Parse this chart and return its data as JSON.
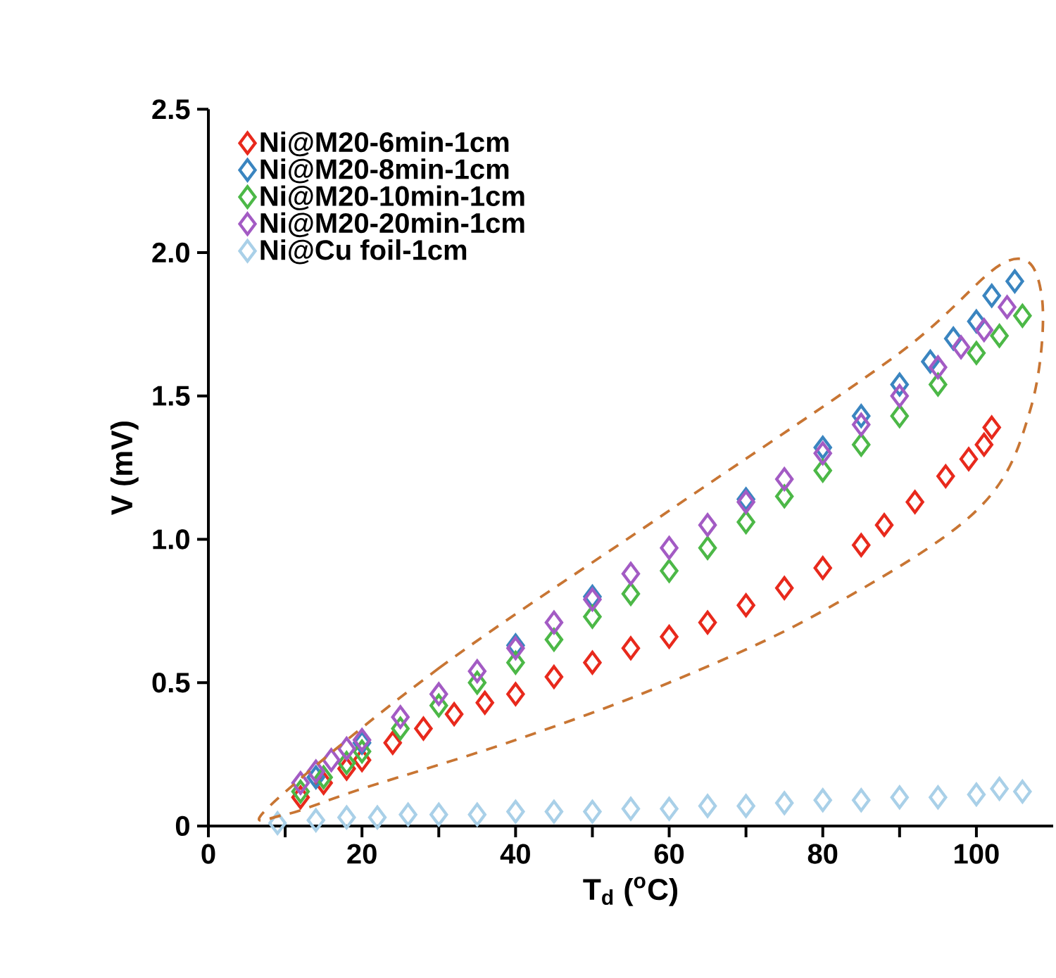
{
  "chart_data": {
    "type": "scatter",
    "xlabel": "T$_{d}$ ($^{o}$C)",
    "ylabel": "V (mV)",
    "xlim": [
      0,
      110
    ],
    "ylim": [
      0,
      2.5
    ],
    "xticks": [
      0,
      {
        "value": 10,
        "label": null
      },
      20,
      {
        "value": 30,
        "label": null
      },
      40,
      {
        "value": 50,
        "label": null
      },
      60,
      {
        "value": 70,
        "label": null
      },
      80,
      {
        "value": 90,
        "label": null
      },
      100
    ],
    "yticks": [
      0,
      0.5,
      {
        "value": 1,
        "label": "1.0"
      },
      1.5,
      {
        "value": 2,
        "label": "2.0"
      },
      2.5
    ],
    "marker": "diamond",
    "legend": "top left",
    "grid": false,
    "series": [
      {
        "name": "Ni@M20-6min-1cm",
        "color": "#e8291c",
        "x": [
          12,
          15,
          18,
          20,
          24,
          28,
          32,
          36,
          40,
          45,
          50,
          55,
          60,
          65,
          70,
          75,
          80,
          85,
          88,
          92,
          96,
          99,
          101,
          102
        ],
        "values": [
          0.1,
          0.15,
          0.2,
          0.23,
          0.29,
          0.34,
          0.39,
          0.43,
          0.46,
          0.52,
          0.57,
          0.62,
          0.66,
          0.71,
          0.77,
          0.83,
          0.9,
          0.98,
          1.05,
          1.13,
          1.22,
          1.28,
          1.33,
          1.39
        ]
      },
      {
        "name": "Ni@M20-8min-1cm",
        "color": "#3a85c0",
        "x": [
          14,
          20,
          30,
          40,
          50,
          60,
          70,
          80,
          85,
          90,
          94,
          97,
          100,
          102,
          105
        ],
        "values": [
          0.17,
          0.29,
          null,
          0.63,
          0.8,
          null,
          1.14,
          1.32,
          1.43,
          1.54,
          1.62,
          1.7,
          1.76,
          1.85,
          1.9
        ]
      },
      {
        "name": "Ni@M20-10min-1cm",
        "color": "#4cb847",
        "x": [
          12,
          15,
          18,
          20,
          25,
          30,
          35,
          40,
          45,
          50,
          55,
          60,
          65,
          70,
          75,
          80,
          85,
          90,
          95,
          100,
          103,
          106
        ],
        "values": [
          0.12,
          0.17,
          0.22,
          0.26,
          0.34,
          0.42,
          0.5,
          0.57,
          0.65,
          0.73,
          0.81,
          0.89,
          0.97,
          1.06,
          1.15,
          1.24,
          1.33,
          1.43,
          1.54,
          1.65,
          1.71,
          1.78
        ]
      },
      {
        "name": "Ni@M20-20min-1cm",
        "color": "#a35bc4",
        "x": [
          12,
          14,
          16,
          18,
          20,
          25,
          30,
          35,
          40,
          45,
          50,
          55,
          60,
          65,
          70,
          75,
          80,
          85,
          90,
          95,
          98,
          101,
          104
        ],
        "values": [
          0.15,
          0.19,
          0.23,
          0.27,
          0.3,
          0.38,
          0.46,
          0.54,
          0.62,
          0.71,
          0.79,
          0.88,
          0.97,
          1.05,
          1.13,
          1.21,
          1.3,
          1.4,
          1.5,
          1.6,
          1.67,
          1.73,
          1.81
        ]
      },
      {
        "name": "Ni@Cu foil-1cm",
        "color": "#a9d0e8",
        "x": [
          9,
          14,
          18,
          22,
          26,
          30,
          35,
          40,
          45,
          50,
          55,
          60,
          65,
          70,
          75,
          80,
          85,
          90,
          95,
          100,
          103,
          106
        ],
        "values": [
          0.01,
          0.02,
          0.03,
          0.03,
          0.04,
          0.04,
          0.04,
          0.05,
          0.05,
          0.05,
          0.06,
          0.06,
          0.07,
          0.07,
          0.08,
          0.09,
          0.09,
          0.1,
          0.1,
          0.11,
          0.13,
          0.12
        ]
      }
    ]
  }
}
